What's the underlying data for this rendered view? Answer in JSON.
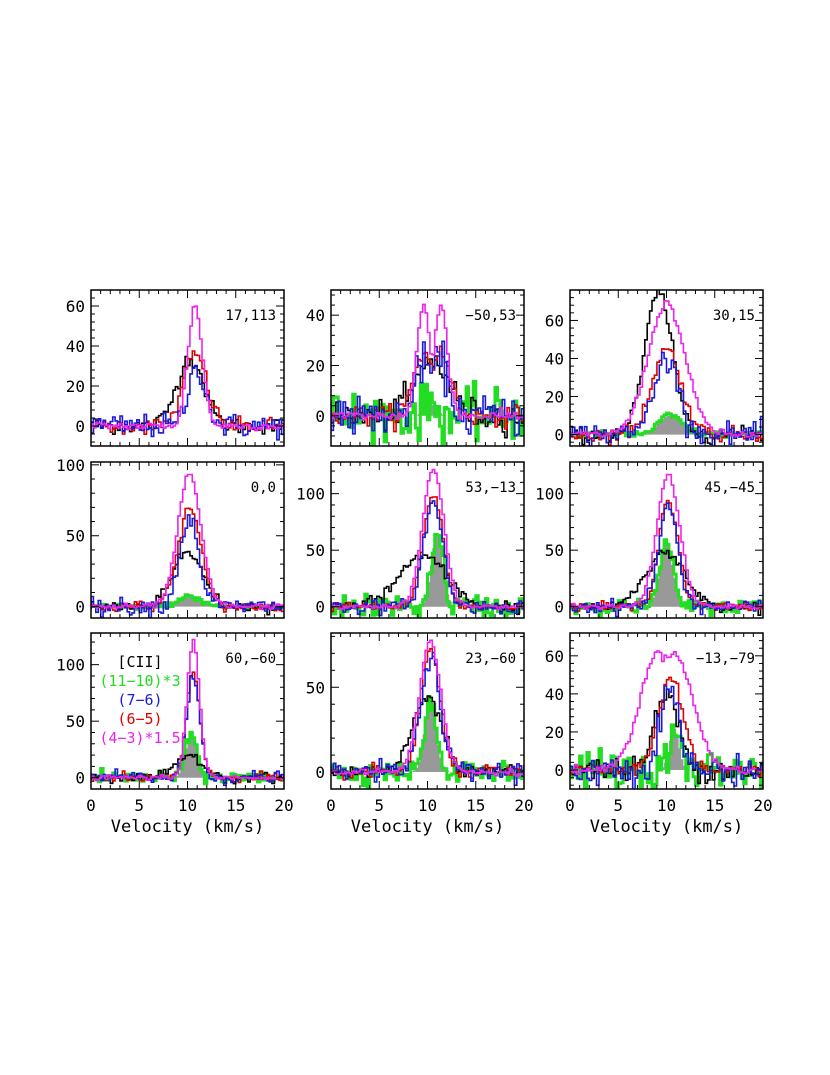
{
  "figure": {
    "xlabel": "Velocity (km/s)",
    "colors": {
      "CII": "#000000",
      "11-10": "#22dd22",
      "7-6": "#1a1adb",
      "6-5": "#e00000",
      "4-3": "#ee22ee",
      "fill": "#999999"
    },
    "legend": {
      "items": [
        "[CII]",
        "(11−10)*3",
        "(7−6)",
        "(6−5)",
        "(4−3)*1.5"
      ],
      "panel": 6
    }
  },
  "chart_data": [
    {
      "type": "line",
      "position_label": "17,113",
      "xlabel": "",
      "xlim": [
        0,
        20
      ],
      "ylim": [
        -10,
        68
      ],
      "xticks": [
        0,
        5,
        10,
        15,
        20
      ],
      "yticks": [
        0,
        20,
        40,
        60
      ],
      "show_xticklabels": false,
      "series": [
        {
          "key": "CII",
          "center": 10.3,
          "amp": 34,
          "sigma": 1.4,
          "noise": 2
        },
        {
          "key": "6-5",
          "center": 10.8,
          "amp": 36,
          "sigma": 1.2,
          "noise": 2
        },
        {
          "key": "7-6",
          "center": 11.0,
          "amp": 29,
          "sigma": 0.9,
          "noise": 3
        },
        {
          "key": "4-3",
          "center": 10.8,
          "amp": 60,
          "sigma": 0.75,
          "noise": 1
        }
      ]
    },
    {
      "type": "line",
      "position_label": "−50,53",
      "xlabel": "",
      "xlim": [
        0,
        20
      ],
      "ylim": [
        -12,
        50
      ],
      "xticks": [
        0,
        5,
        10,
        15,
        20
      ],
      "yticks": [
        0,
        20,
        40
      ],
      "show_xticklabels": false,
      "series": [
        {
          "key": "11-10",
          "center": 10.3,
          "amp": 5,
          "sigma": 0.6,
          "noise": 5,
          "fill": true
        },
        {
          "key": "CII",
          "center": 10.5,
          "amp": 22,
          "sigma": 1.7,
          "noise": 3
        },
        {
          "key": "6-5",
          "center": 10.5,
          "amp": 25,
          "sigma": 1.1,
          "double": true,
          "sep": 1.6,
          "noise": 2
        },
        {
          "key": "7-6",
          "center": 10.5,
          "amp": 22,
          "sigma": 0.9,
          "double": true,
          "sep": 1.6,
          "noise": 4
        },
        {
          "key": "4-3",
          "center": 10.5,
          "amp": 44,
          "sigma": 0.7,
          "double": true,
          "sep": 1.8,
          "noise": 1
        }
      ]
    },
    {
      "type": "line",
      "position_label": "30,15",
      "xlabel": "",
      "xlim": [
        0,
        20
      ],
      "ylim": [
        -6,
        76
      ],
      "xticks": [
        0,
        5,
        10,
        15,
        20
      ],
      "yticks": [
        0,
        20,
        40,
        60
      ],
      "show_xticklabels": false,
      "series": [
        {
          "key": "11-10",
          "center": 10.4,
          "amp": 10,
          "sigma": 1.2,
          "noise": 1,
          "fill": true
        },
        {
          "key": "CII",
          "center": 9.2,
          "amp": 75,
          "sigma": 1.4,
          "noise": 2
        },
        {
          "key": "6-5",
          "center": 10.0,
          "amp": 45,
          "sigma": 1.5,
          "noise": 2
        },
        {
          "key": "7-6",
          "center": 10.0,
          "amp": 40,
          "sigma": 1.3,
          "noise": 3
        },
        {
          "key": "4-3",
          "center": 10.0,
          "amp": 69,
          "sigma": 1.9,
          "noise": 1
        }
      ]
    },
    {
      "type": "line",
      "position_label": "0,0",
      "xlabel": "",
      "xlim": [
        0,
        20
      ],
      "ylim": [
        -8,
        102
      ],
      "xticks": [
        0,
        5,
        10,
        15,
        20
      ],
      "yticks": [
        0,
        50,
        100
      ],
      "show_xticklabels": false,
      "series": [
        {
          "key": "11-10",
          "center": 10.2,
          "amp": 7,
          "sigma": 1.2,
          "noise": 1,
          "fill": true
        },
        {
          "key": "CII",
          "center": 10.0,
          "amp": 38,
          "sigma": 1.6,
          "noise": 2
        },
        {
          "key": "6-5",
          "center": 10.2,
          "amp": 69,
          "sigma": 1.2,
          "noise": 2
        },
        {
          "key": "7-6",
          "center": 10.2,
          "amp": 62,
          "sigma": 1.0,
          "noise": 3
        },
        {
          "key": "4-3",
          "center": 10.2,
          "amp": 93,
          "sigma": 1.2,
          "noise": 1
        }
      ]
    },
    {
      "type": "line",
      "position_label": "53,−13",
      "xlabel": "",
      "xlim": [
        0,
        20
      ],
      "ylim": [
        -10,
        128
      ],
      "xticks": [
        0,
        5,
        10,
        15,
        20
      ],
      "yticks": [
        0,
        50,
        100
      ],
      "show_xticklabels": false,
      "series": [
        {
          "key": "11-10",
          "center": 11.0,
          "amp": 63,
          "sigma": 0.6,
          "noise": 5,
          "fill": true
        },
        {
          "key": "CII",
          "center": 9.5,
          "amp": 45,
          "sigma": 2.4,
          "noise": 3
        },
        {
          "key": "6-5",
          "center": 10.6,
          "amp": 100,
          "sigma": 1.0,
          "noise": 2
        },
        {
          "key": "7-6",
          "center": 10.6,
          "amp": 92,
          "sigma": 1.0,
          "noise": 3
        },
        {
          "key": "4-3",
          "center": 10.6,
          "amp": 122,
          "sigma": 1.1,
          "noise": 1
        }
      ]
    },
    {
      "type": "line",
      "position_label": "45,−45",
      "xlabel": "",
      "xlim": [
        0,
        20
      ],
      "ylim": [
        -10,
        128
      ],
      "xticks": [
        0,
        5,
        10,
        15,
        20
      ],
      "yticks": [
        0,
        50,
        100
      ],
      "show_xticklabels": false,
      "series": [
        {
          "key": "11-10",
          "center": 10.0,
          "amp": 55,
          "sigma": 0.7,
          "noise": 3,
          "fill": true
        },
        {
          "key": "CII",
          "center": 9.8,
          "amp": 48,
          "sigma": 2.0,
          "noise": 2
        },
        {
          "key": "6-5",
          "center": 10.2,
          "amp": 95,
          "sigma": 1.0,
          "noise": 2
        },
        {
          "key": "7-6",
          "center": 10.2,
          "amp": 88,
          "sigma": 1.0,
          "noise": 3
        },
        {
          "key": "4-3",
          "center": 10.2,
          "amp": 116,
          "sigma": 1.2,
          "noise": 1
        }
      ]
    },
    {
      "type": "line",
      "position_label": "60,−60",
      "xlabel": "Velocity (km/s)",
      "xlim": [
        0,
        20
      ],
      "ylim": [
        -10,
        128
      ],
      "xticks": [
        0,
        5,
        10,
        15,
        20
      ],
      "yticks": [
        0,
        50,
        100
      ],
      "show_xticklabels": true,
      "series": [
        {
          "key": "11-10",
          "center": 10.4,
          "amp": 38,
          "sigma": 0.6,
          "noise": 3,
          "fill": true
        },
        {
          "key": "CII",
          "center": 10.3,
          "amp": 20,
          "sigma": 1.3,
          "noise": 2
        },
        {
          "key": "6-5",
          "center": 10.6,
          "amp": 90,
          "sigma": 0.7,
          "noise": 2
        },
        {
          "key": "7-6",
          "center": 10.6,
          "amp": 88,
          "sigma": 0.7,
          "noise": 3
        },
        {
          "key": "4-3",
          "center": 10.6,
          "amp": 120,
          "sigma": 0.65,
          "noise": 1
        }
      ]
    },
    {
      "type": "line",
      "position_label": "23,−60",
      "xlabel": "Velocity (km/s)",
      "xlim": [
        0,
        20
      ],
      "ylim": [
        -10,
        82
      ],
      "xticks": [
        0,
        5,
        10,
        15,
        20
      ],
      "yticks": [
        0,
        50
      ],
      "show_xticklabels": true,
      "series": [
        {
          "key": "11-10",
          "center": 10.3,
          "amp": 42,
          "sigma": 0.6,
          "noise": 3,
          "fill": true
        },
        {
          "key": "CII",
          "center": 10.0,
          "amp": 45,
          "sigma": 1.5,
          "noise": 2
        },
        {
          "key": "6-5",
          "center": 10.3,
          "amp": 72,
          "sigma": 1.0,
          "noise": 2
        },
        {
          "key": "7-6",
          "center": 10.3,
          "amp": 68,
          "sigma": 1.0,
          "noise": 3
        },
        {
          "key": "4-3",
          "center": 10.3,
          "amp": 78,
          "sigma": 1.1,
          "noise": 1
        }
      ]
    },
    {
      "type": "line",
      "position_label": "−13,−79",
      "xlabel": "Velocity (km/s)",
      "xlim": [
        0,
        20
      ],
      "ylim": [
        -10,
        72
      ],
      "xticks": [
        0,
        5,
        10,
        15,
        20
      ],
      "yticks": [
        0,
        20,
        40,
        60
      ],
      "show_xticklabels": true,
      "series": [
        {
          "key": "11-10",
          "center": 10.8,
          "amp": 22,
          "sigma": 0.5,
          "noise": 5,
          "fill": true
        },
        {
          "key": "CII",
          "center": 10.0,
          "amp": 40,
          "sigma": 1.2,
          "noise": 3
        },
        {
          "key": "6-5",
          "center": 10.5,
          "amp": 48,
          "sigma": 1.3,
          "noise": 2
        },
        {
          "key": "7-6",
          "center": 10.3,
          "amp": 42,
          "sigma": 1.0,
          "noise": 4
        },
        {
          "key": "4-3",
          "center": 10.0,
          "amp": 62,
          "sigma": 1.9,
          "double": true,
          "sep": 1.6,
          "noise": 1
        }
      ]
    }
  ]
}
